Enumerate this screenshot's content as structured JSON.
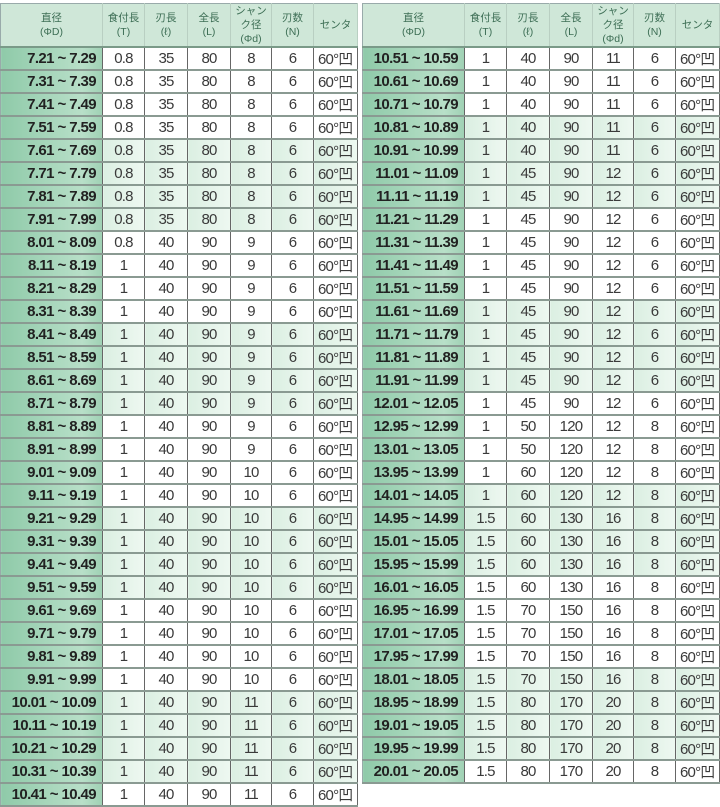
{
  "headers": [
    {
      "line1": "直径",
      "line2": "(ΦD)"
    },
    {
      "line1": "食付長",
      "line2": "(T)"
    },
    {
      "line1": "刃長",
      "line2": "(ℓ)"
    },
    {
      "line1": "全長",
      "line2": "(L)"
    },
    {
      "line1": "シャンク径",
      "line2": "(Φd)"
    },
    {
      "line1": "刃数",
      "line2": "(N)"
    },
    {
      "line1": "センタ",
      "line2": ""
    }
  ],
  "colors": {
    "header_bg": "#cfe7d8",
    "diameter_col_bg": "#8fcaa9",
    "band_bg": "#dbefe2"
  },
  "left_rows": [
    [
      "7.21 ~  7.29",
      "0.8",
      "35",
      "80",
      "8",
      "6",
      "60°凹"
    ],
    [
      "7.31 ~  7.39",
      "0.8",
      "35",
      "80",
      "8",
      "6",
      "60°凹"
    ],
    [
      "7.41 ~  7.49",
      "0.8",
      "35",
      "80",
      "8",
      "6",
      "60°凹"
    ],
    [
      "7.51 ~  7.59",
      "0.8",
      "35",
      "80",
      "8",
      "6",
      "60°凹"
    ],
    [
      "7.61 ~  7.69",
      "0.8",
      "35",
      "80",
      "8",
      "6",
      "60°凹"
    ],
    [
      "7.71 ~  7.79",
      "0.8",
      "35",
      "80",
      "8",
      "6",
      "60°凹"
    ],
    [
      "7.81 ~  7.89",
      "0.8",
      "35",
      "80",
      "8",
      "6",
      "60°凹"
    ],
    [
      "7.91 ~  7.99",
      "0.8",
      "35",
      "80",
      "8",
      "6",
      "60°凹"
    ],
    [
      "8.01 ~  8.09",
      "0.8",
      "40",
      "90",
      "9",
      "6",
      "60°凹"
    ],
    [
      "8.11 ~  8.19",
      "1",
      "40",
      "90",
      "9",
      "6",
      "60°凹"
    ],
    [
      "8.21 ~  8.29",
      "1",
      "40",
      "90",
      "9",
      "6",
      "60°凹"
    ],
    [
      "8.31 ~  8.39",
      "1",
      "40",
      "90",
      "9",
      "6",
      "60°凹"
    ],
    [
      "8.41 ~  8.49",
      "1",
      "40",
      "90",
      "9",
      "6",
      "60°凹"
    ],
    [
      "8.51 ~  8.59",
      "1",
      "40",
      "90",
      "9",
      "6",
      "60°凹"
    ],
    [
      "8.61 ~  8.69",
      "1",
      "40",
      "90",
      "9",
      "6",
      "60°凹"
    ],
    [
      "8.71 ~  8.79",
      "1",
      "40",
      "90",
      "9",
      "6",
      "60°凹"
    ],
    [
      "8.81 ~  8.89",
      "1",
      "40",
      "90",
      "9",
      "6",
      "60°凹"
    ],
    [
      "8.91 ~  8.99",
      "1",
      "40",
      "90",
      "9",
      "6",
      "60°凹"
    ],
    [
      "9.01 ~  9.09",
      "1",
      "40",
      "90",
      "10",
      "6",
      "60°凹"
    ],
    [
      "9.11 ~  9.19",
      "1",
      "40",
      "90",
      "10",
      "6",
      "60°凹"
    ],
    [
      "9.21 ~  9.29",
      "1",
      "40",
      "90",
      "10",
      "6",
      "60°凹"
    ],
    [
      "9.31 ~  9.39",
      "1",
      "40",
      "90",
      "10",
      "6",
      "60°凹"
    ],
    [
      "9.41 ~  9.49",
      "1",
      "40",
      "90",
      "10",
      "6",
      "60°凹"
    ],
    [
      "9.51 ~  9.59",
      "1",
      "40",
      "90",
      "10",
      "6",
      "60°凹"
    ],
    [
      "9.61 ~  9.69",
      "1",
      "40",
      "90",
      "10",
      "6",
      "60°凹"
    ],
    [
      "9.71 ~  9.79",
      "1",
      "40",
      "90",
      "10",
      "6",
      "60°凹"
    ],
    [
      "9.81 ~  9.89",
      "1",
      "40",
      "90",
      "10",
      "6",
      "60°凹"
    ],
    [
      "9.91 ~  9.99",
      "1",
      "40",
      "90",
      "10",
      "6",
      "60°凹"
    ],
    [
      "10.01 ~ 10.09",
      "1",
      "40",
      "90",
      "11",
      "6",
      "60°凹"
    ],
    [
      "10.11 ~ 10.19",
      "1",
      "40",
      "90",
      "11",
      "6",
      "60°凹"
    ],
    [
      "10.21 ~ 10.29",
      "1",
      "40",
      "90",
      "11",
      "6",
      "60°凹"
    ],
    [
      "10.31 ~ 10.39",
      "1",
      "40",
      "90",
      "11",
      "6",
      "60°凹"
    ],
    [
      "10.41 ~ 10.49",
      "1",
      "40",
      "90",
      "11",
      "6",
      "60°凹"
    ]
  ],
  "right_rows": [
    [
      "10.51 ~ 10.59",
      "1",
      "40",
      "90",
      "11",
      "6",
      "60°凹"
    ],
    [
      "10.61 ~ 10.69",
      "1",
      "40",
      "90",
      "11",
      "6",
      "60°凹"
    ],
    [
      "10.71 ~ 10.79",
      "1",
      "40",
      "90",
      "11",
      "6",
      "60°凹"
    ],
    [
      "10.81 ~ 10.89",
      "1",
      "40",
      "90",
      "11",
      "6",
      "60°凹"
    ],
    [
      "10.91 ~ 10.99",
      "1",
      "40",
      "90",
      "11",
      "6",
      "60°凹"
    ],
    [
      "11.01 ~ 11.09",
      "1",
      "45",
      "90",
      "12",
      "6",
      "60°凹"
    ],
    [
      "11.11 ~ 11.19",
      "1",
      "45",
      "90",
      "12",
      "6",
      "60°凹"
    ],
    [
      "11.21 ~ 11.29",
      "1",
      "45",
      "90",
      "12",
      "6",
      "60°凹"
    ],
    [
      "11.31 ~ 11.39",
      "1",
      "45",
      "90",
      "12",
      "6",
      "60°凹"
    ],
    [
      "11.41 ~ 11.49",
      "1",
      "45",
      "90",
      "12",
      "6",
      "60°凹"
    ],
    [
      "11.51 ~ 11.59",
      "1",
      "45",
      "90",
      "12",
      "6",
      "60°凹"
    ],
    [
      "11.61 ~ 11.69",
      "1",
      "45",
      "90",
      "12",
      "6",
      "60°凹"
    ],
    [
      "11.71 ~ 11.79",
      "1",
      "45",
      "90",
      "12",
      "6",
      "60°凹"
    ],
    [
      "11.81 ~ 11.89",
      "1",
      "45",
      "90",
      "12",
      "6",
      "60°凹"
    ],
    [
      "11.91 ~ 11.99",
      "1",
      "45",
      "90",
      "12",
      "6",
      "60°凹"
    ],
    [
      "12.01 ~ 12.05",
      "1",
      "45",
      "90",
      "12",
      "6",
      "60°凹"
    ],
    [
      "12.95 ~ 12.99",
      "1",
      "50",
      "120",
      "12",
      "8",
      "60°凹"
    ],
    [
      "13.01 ~ 13.05",
      "1",
      "50",
      "120",
      "12",
      "8",
      "60°凹"
    ],
    [
      "13.95 ~ 13.99",
      "1",
      "60",
      "120",
      "12",
      "8",
      "60°凹"
    ],
    [
      "14.01 ~ 14.05",
      "1",
      "60",
      "120",
      "12",
      "8",
      "60°凹"
    ],
    [
      "14.95 ~ 14.99",
      "1.5",
      "60",
      "130",
      "16",
      "8",
      "60°凹"
    ],
    [
      "15.01 ~ 15.05",
      "1.5",
      "60",
      "130",
      "16",
      "8",
      "60°凹"
    ],
    [
      "15.95 ~ 15.99",
      "1.5",
      "60",
      "130",
      "16",
      "8",
      "60°凹"
    ],
    [
      "16.01 ~ 16.05",
      "1.5",
      "60",
      "130",
      "16",
      "8",
      "60°凹"
    ],
    [
      "16.95 ~ 16.99",
      "1.5",
      "70",
      "150",
      "16",
      "8",
      "60°凹"
    ],
    [
      "17.01 ~ 17.05",
      "1.5",
      "70",
      "150",
      "16",
      "8",
      "60°凹"
    ],
    [
      "17.95 ~ 17.99",
      "1.5",
      "70",
      "150",
      "16",
      "8",
      "60°凹"
    ],
    [
      "18.01 ~ 18.05",
      "1.5",
      "70",
      "150",
      "16",
      "8",
      "60°凹"
    ],
    [
      "18.95 ~ 18.99",
      "1.5",
      "80",
      "170",
      "20",
      "8",
      "60°凹"
    ],
    [
      "19.01 ~ 19.05",
      "1.5",
      "80",
      "170",
      "20",
      "8",
      "60°凹"
    ],
    [
      "19.95 ~ 19.99",
      "1.5",
      "80",
      "170",
      "20",
      "8",
      "60°凹"
    ],
    [
      "20.01 ~ 20.05",
      "1.5",
      "80",
      "170",
      "20",
      "8",
      "60°凹"
    ]
  ]
}
